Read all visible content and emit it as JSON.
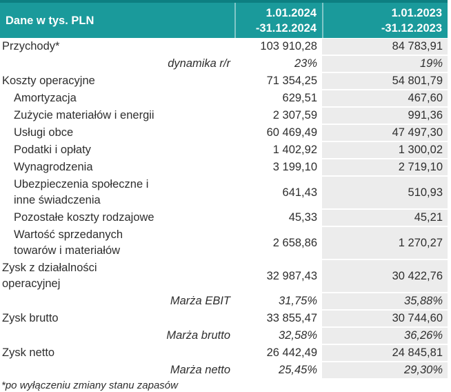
{
  "accent_color": "#1a9a9b",
  "accent_dark_color": "#0d7f81",
  "column_2023_bg_color": "#ececec",
  "text_color": "#2e2e2e",
  "header": {
    "col_label": "Dane w tys. PLN",
    "col_2024": "1.01.2024\n-31.12.2024",
    "col_2023": "1.01.2023\n-31.12.2023"
  },
  "rows": [
    {
      "label": "Przychody*",
      "v2024": "103 910,28",
      "v2023": "84 783,91",
      "indent": false,
      "italic": false
    },
    {
      "label": "dynamika r/r",
      "v2024": "23%",
      "v2023": "19%",
      "indent": false,
      "italic": true
    },
    {
      "label": "Koszty operacyjne",
      "v2024": "71 354,25",
      "v2023": "54 801,79",
      "indent": false,
      "italic": false
    },
    {
      "label": "Amortyzacja",
      "v2024": "629,51",
      "v2023": "467,60",
      "indent": true,
      "italic": false
    },
    {
      "label": "Zużycie materiałów i energii",
      "v2024": "2 307,59",
      "v2023": "991,36",
      "indent": true,
      "italic": false
    },
    {
      "label": "Usługi obce",
      "v2024": "60 469,49",
      "v2023": "47 497,30",
      "indent": true,
      "italic": false
    },
    {
      "label": "Podatki i opłaty",
      "v2024": "1 402,92",
      "v2023": "1 300,02",
      "indent": true,
      "italic": false
    },
    {
      "label": "Wynagrodzenia",
      "v2024": "3 199,10",
      "v2023": "2 719,10",
      "indent": true,
      "italic": false
    },
    {
      "label": "Ubezpieczenia społeczne i\ninne świadczenia",
      "v2024": "641,43",
      "v2023": "510,93",
      "indent": true,
      "italic": false
    },
    {
      "label": "Pozostałe koszty rodzajowe",
      "v2024": "45,33",
      "v2023": "45,21",
      "indent": true,
      "italic": false
    },
    {
      "label": "Wartość sprzedanych\ntowarów i materiałów",
      "v2024": "2 658,86",
      "v2023": "1 270,27",
      "indent": true,
      "italic": false
    },
    {
      "label": "Zysk z działalności\noperacyjnej",
      "v2024": "32 987,43",
      "v2023": "30 422,76",
      "indent": false,
      "italic": false
    },
    {
      "label": "Marża EBIT",
      "v2024": "31,75%",
      "v2023": "35,88%",
      "indent": false,
      "italic": true
    },
    {
      "label": "Zysk brutto",
      "v2024": "33 855,47",
      "v2023": "30 744,60",
      "indent": false,
      "italic": false
    },
    {
      "label": "Marża brutto",
      "v2024": "32,58%",
      "v2023": "36,26%",
      "indent": false,
      "italic": true
    },
    {
      "label": "Zysk netto",
      "v2024": "26 442,49",
      "v2023": "24 845,81",
      "indent": false,
      "italic": false
    },
    {
      "label": "Marża netto",
      "v2024": "25,45%",
      "v2023": "29,30%",
      "indent": false,
      "italic": true
    }
  ],
  "footnote": "*po wyłączeniu zmiany stanu zapasów",
  "chart_data": {
    "type": "table",
    "title": "Dane w tys. PLN",
    "columns": [
      "Dane w tys. PLN",
      "1.01.2024 -31.12.2024",
      "1.01.2023 -31.12.2023"
    ],
    "rows": [
      [
        "Przychody*",
        "103 910,28",
        "84 783,91"
      ],
      [
        "dynamika r/r",
        "23%",
        "19%"
      ],
      [
        "Koszty operacyjne",
        "71 354,25",
        "54 801,79"
      ],
      [
        "Amortyzacja",
        "629,51",
        "467,60"
      ],
      [
        "Zużycie materiałów i energii",
        "2 307,59",
        "991,36"
      ],
      [
        "Usługi obce",
        "60 469,49",
        "47 497,30"
      ],
      [
        "Podatki i opłaty",
        "1 402,92",
        "1 300,02"
      ],
      [
        "Wynagrodzenia",
        "3 199,10",
        "2 719,10"
      ],
      [
        "Ubezpieczenia społeczne i inne świadczenia",
        "641,43",
        "510,93"
      ],
      [
        "Pozostałe koszty rodzajowe",
        "45,33",
        "45,21"
      ],
      [
        "Wartość sprzedanych towarów i materiałów",
        "2 658,86",
        "1 270,27"
      ],
      [
        "Zysk z działalności operacyjnej",
        "32 987,43",
        "30 422,76"
      ],
      [
        "Marża EBIT",
        "31,75%",
        "35,88%"
      ],
      [
        "Zysk brutto",
        "33 855,47",
        "30 744,60"
      ],
      [
        "Marża brutto",
        "32,58%",
        "36,26%"
      ],
      [
        "Zysk netto",
        "26 442,49",
        "24 845,81"
      ],
      [
        "Marża netto",
        "25,45%",
        "29,30%"
      ]
    ],
    "footnote": "*po wyłączeniu zmiany stanu zapasów"
  }
}
